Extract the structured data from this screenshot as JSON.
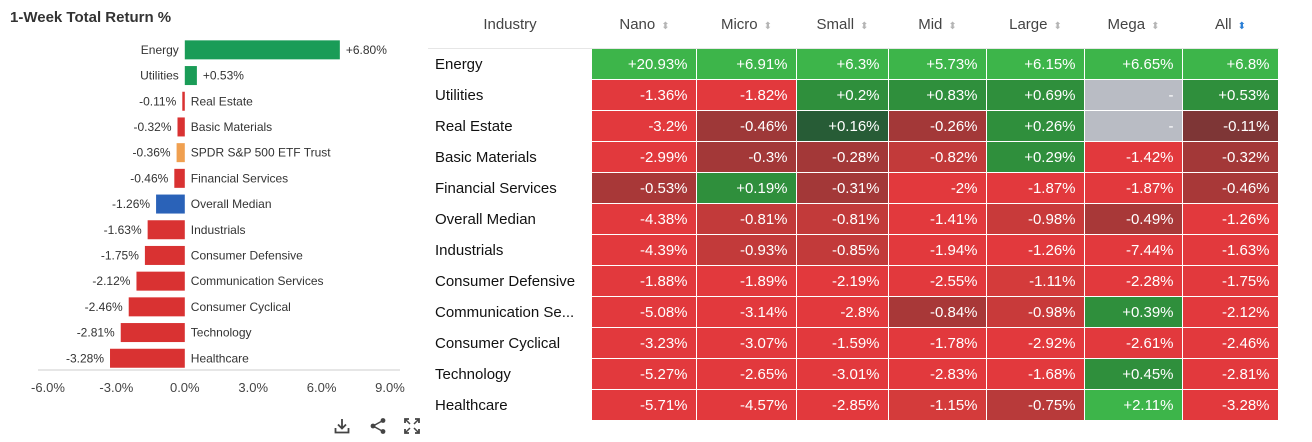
{
  "chart_data": {
    "type": "bar",
    "orientation": "horizontal",
    "title": "1-Week Total Return %",
    "categories": [
      "Energy",
      "Utilities",
      "Real Estate",
      "Basic Materials",
      "SPDR S&P 500 ETF Trust",
      "Financial Services",
      "Overall Median",
      "Industrials",
      "Consumer Defensive",
      "Communication Services",
      "Consumer Cyclical",
      "Technology",
      "Healthcare"
    ],
    "values": [
      6.8,
      0.53,
      -0.11,
      -0.32,
      -0.36,
      -0.46,
      -1.26,
      -1.63,
      -1.75,
      -2.12,
      -2.46,
      -2.81,
      -3.28
    ],
    "value_labels": [
      "+6.80%",
      "+0.53%",
      "-0.11%",
      "-0.32%",
      "-0.36%",
      "-0.46%",
      "-1.26%",
      "-1.63%",
      "-1.75%",
      "-2.12%",
      "-2.46%",
      "-2.81%",
      "-3.28%"
    ],
    "bar_colors": [
      "#1a9c57",
      "#1a9c57",
      "#d93232",
      "#d93232",
      "#f0a050",
      "#d93232",
      "#2a62b8",
      "#d93232",
      "#d93232",
      "#d93232",
      "#d93232",
      "#d93232",
      "#d93232"
    ],
    "xlim": [
      -6,
      9
    ],
    "xticks": [
      -6,
      -3,
      0,
      3,
      6,
      9
    ],
    "xtick_labels": [
      "-6.0%",
      "-3.0%",
      "0.0%",
      "3.0%",
      "6.0%",
      "9.0%"
    ],
    "grid": false
  },
  "toolbar": {
    "icons": [
      "download-icon",
      "share-icon",
      "fullscreen-icon"
    ]
  },
  "table": {
    "columns": [
      "Industry",
      "Nano",
      "Micro",
      "Small",
      "Mid",
      "Large",
      "Mega",
      "All"
    ],
    "sorted_column": "All",
    "rows": [
      {
        "industry": "Energy",
        "values": [
          "+20.93%",
          "+6.91%",
          "+6.3%",
          "+5.73%",
          "+6.15%",
          "+6.65%",
          "+6.8%"
        ],
        "colors": [
          "#3db54a",
          "#3db54a",
          "#3db54a",
          "#3db54a",
          "#3db54a",
          "#3db54a",
          "#3db54a"
        ]
      },
      {
        "industry": "Utilities",
        "values": [
          "-1.36%",
          "-1.82%",
          "+0.2%",
          "+0.83%",
          "+0.69%",
          "-",
          "+0.53%"
        ],
        "colors": [
          "#e2393d",
          "#e2393d",
          "#2f8f3c",
          "#2f8f3c",
          "#2f8f3c",
          "#b9bcc4",
          "#2f8f3c"
        ]
      },
      {
        "industry": "Real Estate",
        "values": [
          "-3.2%",
          "-0.46%",
          "+0.16%",
          "-0.26%",
          "+0.26%",
          "-",
          "-0.11%"
        ],
        "colors": [
          "#e2393d",
          "#9e3838",
          "#275c36",
          "#a33838",
          "#2f8f3c",
          "#b9bcc4",
          "#7e3636"
        ]
      },
      {
        "industry": "Basic Materials",
        "values": [
          "-2.99%",
          "-0.3%",
          "-0.28%",
          "-0.82%",
          "+0.29%",
          "-1.42%",
          "-0.32%"
        ],
        "colors": [
          "#e2393d",
          "#a33838",
          "#a33838",
          "#c23a3a",
          "#2f8f3c",
          "#e2393d",
          "#a33838"
        ]
      },
      {
        "industry": "Financial Services",
        "values": [
          "-0.53%",
          "+0.19%",
          "-0.31%",
          "-2%",
          "-1.87%",
          "-1.87%",
          "-0.46%"
        ],
        "colors": [
          "#a83838",
          "#2f8f3c",
          "#a33838",
          "#e2393d",
          "#e2393d",
          "#e2393d",
          "#a83838"
        ]
      },
      {
        "industry": "Overall Median",
        "values": [
          "-4.38%",
          "-0.81%",
          "-0.81%",
          "-1.41%",
          "-0.98%",
          "-0.49%",
          "-1.26%"
        ],
        "colors": [
          "#e2393d",
          "#c23a3a",
          "#c23a3a",
          "#e2393d",
          "#c83a3a",
          "#a83838",
          "#e2393d"
        ]
      },
      {
        "industry": "Industrials",
        "values": [
          "-4.39%",
          "-0.93%",
          "-0.85%",
          "-1.94%",
          "-1.26%",
          "-7.44%",
          "-1.63%"
        ],
        "colors": [
          "#e2393d",
          "#c23a3a",
          "#c23a3a",
          "#e2393d",
          "#e2393d",
          "#e2393d",
          "#e2393d"
        ]
      },
      {
        "industry": "Consumer Defensive",
        "values": [
          "-1.88%",
          "-1.89%",
          "-2.19%",
          "-2.55%",
          "-1.11%",
          "-2.28%",
          "-1.75%"
        ],
        "colors": [
          "#e2393d",
          "#e2393d",
          "#e2393d",
          "#e2393d",
          "#d43b3b",
          "#e2393d",
          "#e2393d"
        ]
      },
      {
        "industry": "Communication Se...",
        "values": [
          "-5.08%",
          "-3.14%",
          "-2.8%",
          "-0.84%",
          "-0.98%",
          "+0.39%",
          "-2.12%"
        ],
        "colors": [
          "#e2393d",
          "#e2393d",
          "#e2393d",
          "#a83838",
          "#c83a3a",
          "#2f8f3c",
          "#e2393d"
        ]
      },
      {
        "industry": "Consumer Cyclical",
        "values": [
          "-3.23%",
          "-3.07%",
          "-1.59%",
          "-1.78%",
          "-2.92%",
          "-2.61%",
          "-2.46%"
        ],
        "colors": [
          "#e2393d",
          "#e2393d",
          "#e2393d",
          "#e2393d",
          "#e2393d",
          "#e2393d",
          "#e2393d"
        ]
      },
      {
        "industry": "Technology",
        "values": [
          "-5.27%",
          "-2.65%",
          "-3.01%",
          "-2.83%",
          "-1.68%",
          "+0.45%",
          "-2.81%"
        ],
        "colors": [
          "#e2393d",
          "#e2393d",
          "#e2393d",
          "#e2393d",
          "#e2393d",
          "#2f8f3c",
          "#e2393d"
        ]
      },
      {
        "industry": "Healthcare",
        "values": [
          "-5.71%",
          "-4.57%",
          "-2.85%",
          "-1.15%",
          "-0.75%",
          "+2.11%",
          "-3.28%"
        ],
        "colors": [
          "#e2393d",
          "#e2393d",
          "#e2393d",
          "#d43b3b",
          "#b83a3a",
          "#3db54a",
          "#e2393d"
        ]
      }
    ]
  }
}
